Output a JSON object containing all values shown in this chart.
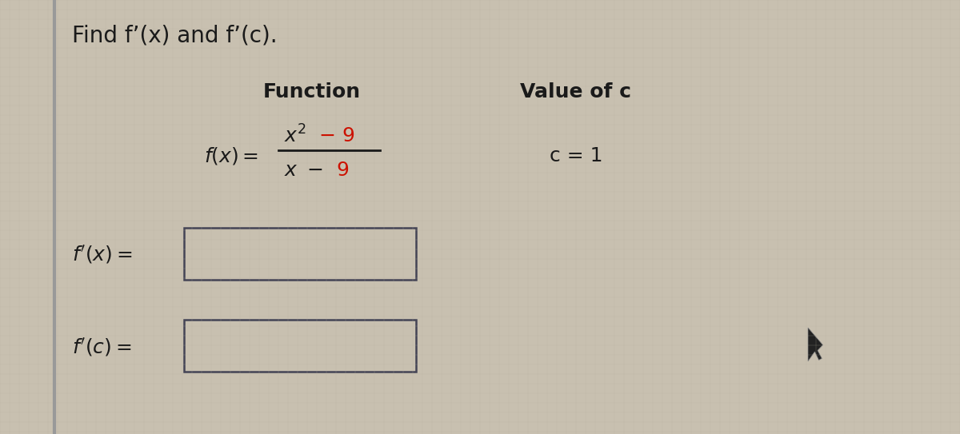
{
  "title": "Find f’(x) and f’(c).",
  "col1_header": "Function",
  "col2_header": "Value of c",
  "c_value": "c = 1",
  "bg_color": "#c8c0b0",
  "text_color": "#1a1a1a",
  "red_color": "#cc1100",
  "box_fill": "#c8c0b0",
  "box_edge": "#444455",
  "left_bar_color": "#aaaaaa",
  "cursor_color": "#222222",
  "fig_width": 12.0,
  "fig_height": 5.43,
  "dpi": 100
}
